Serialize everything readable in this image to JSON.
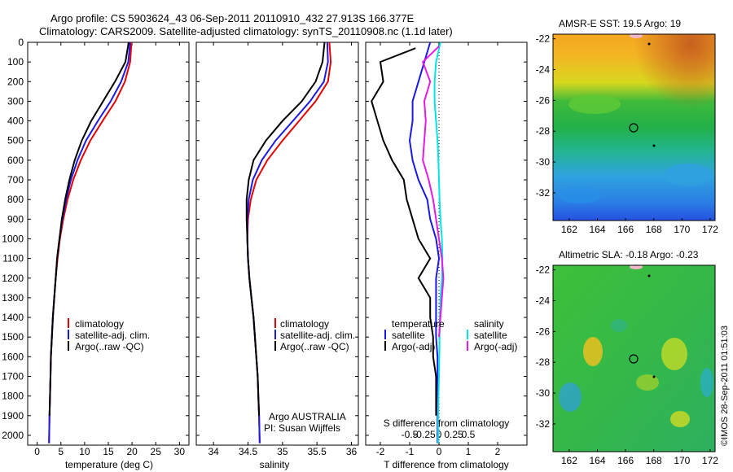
{
  "header": {
    "line1": "Argo profile: CS 5903624_43 06-Sep-2011 20110910_432 27.913S 166.377E",
    "line2": "Climatology: CARS2009. Satellite-adjusted climatology: synTS_20110908.nc (1.1d later)"
  },
  "colors": {
    "climatology": "#e60000",
    "satellite": "#1a1ae6",
    "argo": "#000000",
    "satellite_salinity": "#00e6e6",
    "argo_salinity": "#e61ae6"
  },
  "depth_axis": {
    "ticks": [
      "0",
      "100",
      "200",
      "300",
      "400",
      "500",
      "600",
      "700",
      "800",
      "900",
      "1000",
      "1100",
      "1200",
      "1300",
      "1400",
      "1500",
      "1600",
      "1700",
      "1800",
      "1900",
      "2000"
    ],
    "range": [
      0,
      2050
    ],
    "inverted": true
  },
  "panel_temperature": {
    "xlabel": "temperature (deg C)",
    "xticks": [
      "0",
      "5",
      "10",
      "15",
      "20",
      "25",
      "30"
    ],
    "xlim": [
      -2,
      32
    ],
    "legend": [
      "climatology",
      "satellite-adj. clim.",
      "Argo(..raw -QC)"
    ]
  },
  "panel_salinity": {
    "xlabel": "salinity",
    "xticks": [
      "34",
      "34.5",
      "35",
      "35.5",
      "36"
    ],
    "xlim": [
      33.75,
      36.1
    ],
    "legend": [
      "climatology",
      "satellite-adj. clim.",
      "Argo(..raw -QC)"
    ],
    "note1": "Argo AUSTRALIA",
    "note2": "PI: Susan Wijffels"
  },
  "panel_difference": {
    "xlabel_bottom": "T difference from climatology",
    "xlabel_top": "S difference from climatology",
    "xticks_bottom": [
      "-2",
      "-1",
      "0",
      "1",
      "2"
    ],
    "xlim_bottom": [
      -2.5,
      3
    ],
    "xticks_top": [
      "-0.5",
      "-0.25",
      "0",
      "0.25",
      "0.5"
    ],
    "legend_temp_title": "temperature",
    "legend_temp": [
      "satellite",
      "Argo(-adj)"
    ],
    "legend_sal_title": "salinity",
    "legend_sal": [
      "satellite",
      "Argo(-adj)"
    ]
  },
  "map_sst": {
    "title": "AMSR-E SST: 19.5 Argo: 19",
    "yticks": [
      "-22",
      "-24",
      "-26",
      "-28",
      "-30",
      "-32"
    ],
    "xticks": [
      "162",
      "164",
      "166",
      "168",
      "170",
      "172"
    ]
  },
  "map_sla": {
    "title": "Altimetric SLA: -0.18 Argo: -0.23",
    "yticks": [
      "-22",
      "-24",
      "-26",
      "-28",
      "-30",
      "-32"
    ],
    "xticks": [
      "162",
      "164",
      "166",
      "168",
      "170",
      "172"
    ]
  },
  "credit": "©IMOS 28-Sep-2011 01:51:03",
  "chart_data": [
    {
      "type": "line",
      "xlabel": "temperature (deg C)",
      "ylabel": "",
      "xlim": [
        -2,
        32
      ],
      "ylim": [
        2050,
        0
      ],
      "series": [
        {
          "name": "climatology",
          "x": [
            19.9,
            19.6,
            18.5,
            16.5,
            13.8,
            11.2,
            9.2,
            7.6,
            6.4,
            5.5,
            4.8,
            4.3,
            3.9,
            3.6,
            3.3,
            3.1,
            2.9,
            2.8,
            2.7,
            2.6,
            2.5
          ],
          "y": [
            0,
            100,
            200,
            300,
            400,
            500,
            600,
            700,
            800,
            900,
            1000,
            1100,
            1200,
            1300,
            1400,
            1500,
            1600,
            1700,
            1800,
            1900,
            2040
          ]
        },
        {
          "name": "satellite-adj. clim.",
          "x": [
            19.6,
            19.2,
            17.7,
            15.5,
            12.8,
            10.3,
            8.5,
            7.1,
            6.1,
            5.3,
            4.7,
            4.2,
            3.9,
            3.6,
            3.3,
            3.1,
            2.9,
            2.8,
            2.7,
            2.6,
            2.5
          ],
          "y": [
            0,
            100,
            200,
            300,
            400,
            500,
            600,
            700,
            800,
            900,
            1000,
            1100,
            1200,
            1300,
            1400,
            1500,
            1600,
            1700,
            1800,
            1900,
            2040
          ]
        },
        {
          "name": "Argo(..raw -QC)",
          "x": [
            19.3,
            18.6,
            16.4,
            13.9,
            11.4,
            9.4,
            7.9,
            6.8,
            5.9,
            5.2,
            4.7,
            4.2,
            3.9,
            3.6,
            3.3,
            3.1,
            2.9,
            2.8,
            2.7,
            2.6
          ],
          "y": [
            0,
            100,
            200,
            300,
            400,
            500,
            600,
            700,
            800,
            900,
            1000,
            1100,
            1200,
            1300,
            1400,
            1500,
            1600,
            1700,
            1800,
            1900
          ]
        }
      ]
    },
    {
      "type": "line",
      "xlabel": "salinity",
      "ylabel": "",
      "xlim": [
        33.75,
        36.1
      ],
      "ylim": [
        2050,
        0
      ],
      "series": [
        {
          "name": "climatology",
          "x": [
            35.68,
            35.7,
            35.66,
            35.48,
            35.24,
            35.0,
            34.78,
            34.62,
            34.54,
            34.5,
            34.49,
            34.5,
            34.52,
            34.55,
            34.58,
            34.6,
            34.62,
            34.64,
            34.65,
            34.66,
            34.67
          ],
          "y": [
            0,
            100,
            200,
            300,
            400,
            500,
            600,
            700,
            800,
            900,
            1000,
            1100,
            1200,
            1300,
            1400,
            1500,
            1600,
            1700,
            1800,
            1900,
            2040
          ]
        },
        {
          "name": "satellite-adj. clim.",
          "x": [
            35.65,
            35.66,
            35.6,
            35.4,
            35.15,
            34.9,
            34.7,
            34.57,
            34.51,
            34.49,
            34.49,
            34.5,
            34.52,
            34.55,
            34.58,
            34.6,
            34.62,
            34.64,
            34.65,
            34.66,
            34.67
          ],
          "y": [
            0,
            100,
            200,
            300,
            400,
            500,
            600,
            700,
            800,
            900,
            1000,
            1100,
            1200,
            1300,
            1400,
            1500,
            1600,
            1700,
            1800,
            1900,
            2040
          ]
        },
        {
          "name": "Argo(..raw -QC)",
          "x": [
            35.61,
            35.58,
            35.48,
            35.28,
            35.0,
            34.76,
            34.58,
            34.51,
            34.48,
            34.48,
            34.49,
            34.5,
            34.52,
            34.55,
            34.58,
            34.6,
            34.62,
            34.64,
            34.65,
            34.66
          ],
          "y": [
            0,
            100,
            200,
            300,
            400,
            500,
            600,
            700,
            800,
            900,
            1000,
            1100,
            1200,
            1300,
            1400,
            1500,
            1600,
            1700,
            1800,
            1900
          ]
        }
      ]
    },
    {
      "type": "line",
      "xlabel": "T difference from climatology",
      "ylabel": "",
      "xlim": [
        -2.5,
        3
      ],
      "ylim": [
        2050,
        0
      ],
      "series": [
        {
          "name": "temperature satellite",
          "x": [
            -0.3,
            -0.5,
            -0.7,
            -0.9,
            -0.9,
            -1.0,
            -0.9,
            -0.7,
            -0.4,
            -0.3,
            -0.1,
            0.0,
            -0.1,
            -0.1,
            -0.1,
            -0.1,
            -0.05,
            -0.05,
            -0.05,
            -0.05,
            -0.05
          ],
          "y": [
            0,
            100,
            200,
            300,
            400,
            500,
            600,
            700,
            800,
            900,
            1000,
            1100,
            1200,
            1300,
            1400,
            1500,
            1600,
            1700,
            1800,
            1900,
            2040
          ]
        },
        {
          "name": "temperature Argo(-adj)",
          "x": [
            -0.8,
            -2.0,
            -1.9,
            -2.3,
            -2.1,
            -1.9,
            -1.6,
            -1.2,
            -1.1,
            -0.9,
            -0.7,
            -0.3,
            -0.7,
            -0.3,
            -0.3,
            -0.2,
            -0.2,
            -0.1,
            -0.1,
            -0.1
          ],
          "y": [
            30,
            100,
            200,
            300,
            400,
            500,
            600,
            700,
            800,
            900,
            1000,
            1100,
            1200,
            1300,
            1400,
            1500,
            1600,
            1700,
            1800,
            1900
          ]
        },
        {
          "name": "salinity satellite",
          "x": [
            0.05,
            -0.1,
            -0.15,
            -0.15,
            -0.1,
            -0.05,
            -0.02,
            0.0,
            0.02,
            0.05,
            0.1,
            0.12,
            0.1,
            0.05,
            0.03,
            0.02,
            0.01,
            0.0,
            -0.02,
            -0.03,
            -0.03
          ],
          "y": [
            0,
            100,
            200,
            300,
            400,
            500,
            600,
            700,
            800,
            900,
            1000,
            1100,
            1200,
            1300,
            1400,
            1500,
            1600,
            1700,
            1800,
            1900,
            2040
          ]
        },
        {
          "name": "salinity Argo(-adj)",
          "x": [
            0.0,
            -0.55,
            -0.3,
            -0.5,
            -0.45,
            -0.5,
            -0.55,
            -0.35,
            -0.2,
            -0.1,
            0.0,
            0.1,
            0.15,
            0.1,
            0.05,
            0.0
          ],
          "y": [
            20,
            100,
            200,
            300,
            400,
            500,
            600,
            700,
            800,
            900,
            1000,
            1100,
            1200,
            1300,
            1400,
            1500
          ]
        }
      ]
    },
    {
      "type": "heatmap",
      "title": "AMSR-E SST: 19.5 Argo: 19",
      "x": [
        162,
        164,
        166,
        168,
        170,
        172
      ],
      "y": [
        -22,
        -24,
        -26,
        -28,
        -30,
        -32
      ],
      "argo_position": [
        166.377,
        -27.913
      ]
    },
    {
      "type": "heatmap",
      "title": "Altimetric SLA: -0.18 Argo: -0.23",
      "x": [
        162,
        164,
        166,
        168,
        170,
        172
      ],
      "y": [
        -22,
        -24,
        -26,
        -28,
        -30,
        -32
      ],
      "argo_position": [
        166.377,
        -27.913
      ]
    }
  ]
}
